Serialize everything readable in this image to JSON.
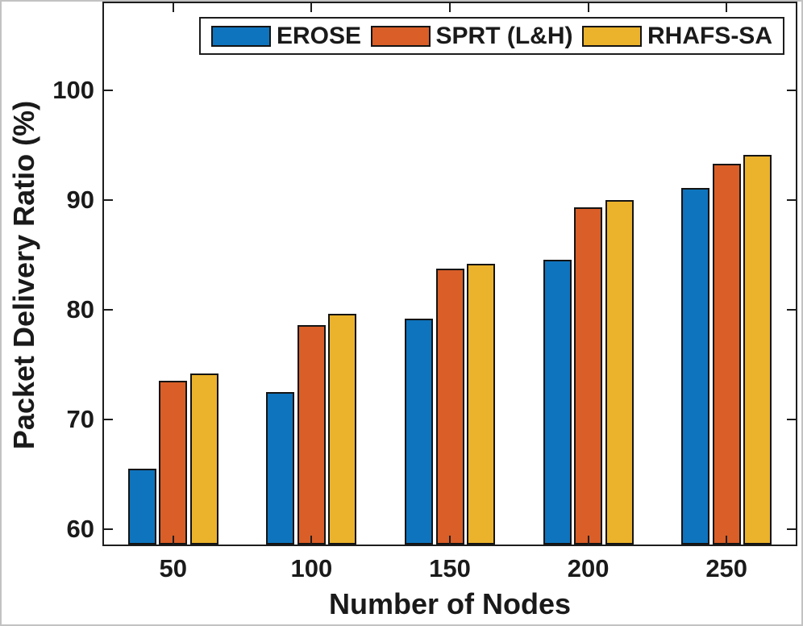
{
  "figure": {
    "xlabel": "Number of Nodes",
    "ylabel": "Packet Delivery Ratio (%)"
  },
  "colors": {
    "erose_blue": "#0E74BE",
    "sprt_orange": "#D95E27",
    "rhafs_yellow": "#EBB22C",
    "axis": "#1d1d1d",
    "bar_edge": "#141414",
    "text": "#1a1a1a"
  },
  "chart_data": {
    "type": "bar",
    "title": "",
    "xlabel": "Number of Nodes",
    "ylabel": "Packet Delivery Ratio (%)",
    "categories": [
      "50",
      "100",
      "150",
      "200",
      "250"
    ],
    "series": [
      {
        "name": "EROSE",
        "color": "#0E74BE",
        "values": [
          65.5,
          72.5,
          79.2,
          84.5,
          91.1
        ]
      },
      {
        "name": "SPRT (L&H)",
        "color": "#D95E27",
        "values": [
          73.5,
          78.6,
          83.7,
          89.3,
          93.3
        ]
      },
      {
        "name": "RHAFS-SA",
        "color": "#EBB22C",
        "values": [
          74.2,
          79.6,
          84.2,
          90.0,
          94.1
        ]
      }
    ],
    "yticks": [
      60,
      70,
      80,
      90,
      100
    ],
    "ylim": [
      58.6,
      107.9
    ],
    "grid": false,
    "tick_direction": "in",
    "legend_position": "top-center-inside",
    "legend_entries": [
      "EROSE",
      "SPRT (L&H)",
      "RHAFS-SA"
    ]
  }
}
